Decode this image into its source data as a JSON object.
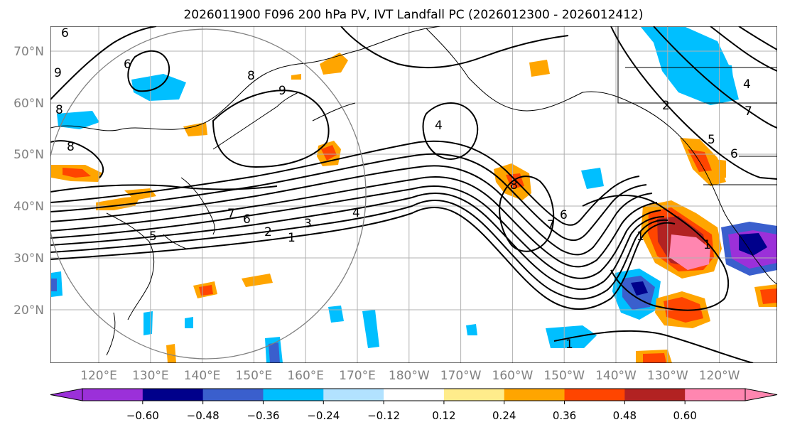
{
  "title": "2026011900 F096 200 hPa PV, IVT Landfall PC (2026012300 - 2026012412)",
  "lat_labels": [
    "70°N",
    "60°N",
    "50°N",
    "40°N",
    "30°N",
    "20°N"
  ],
  "lon_labels": [
    "120°E",
    "130°E",
    "140°E",
    "150°E",
    "160°E",
    "170°E",
    "180°W",
    "170°W",
    "160°W",
    "150°W",
    "140°W",
    "130°W",
    "120°W"
  ],
  "colorbar": {
    "ticks": [
      "−0.60",
      "−0.48",
      "−0.36",
      "−0.24",
      "−0.12",
      "0.12",
      "0.24",
      "0.36",
      "0.48",
      "0.60"
    ],
    "colors": [
      "#9b30d9",
      "#00008b",
      "#3a5fcd",
      "#00bfff",
      "#b2e2ff",
      "#ffffff",
      "#ffec8b",
      "#ffa500",
      "#ff4500",
      "#b22222",
      "#ff86b0",
      "#ff86b0"
    ]
  },
  "contour_labels": [
    "9",
    "6",
    "8",
    "8",
    "9",
    "6",
    "8",
    "7",
    "6",
    "5",
    "4",
    "3",
    "2",
    "1",
    "4",
    "8",
    "7",
    "6",
    "1",
    "1",
    "2",
    "4",
    "5",
    "6",
    "7",
    "1"
  ],
  "colors": {
    "axis_label": "#808080",
    "contour": "#000000",
    "grid": "#b0b0b0",
    "circle": "#808080"
  }
}
